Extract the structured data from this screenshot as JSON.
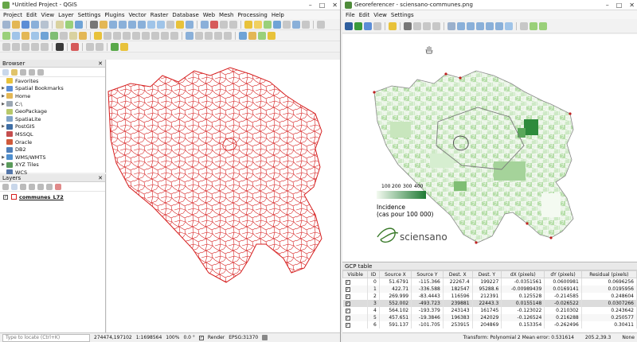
{
  "qgis": {
    "title": "*Untitled Project - QGIS",
    "menu": [
      "Project",
      "Edit",
      "View",
      "Layer",
      "Settings",
      "Plugins",
      "Vector",
      "Raster",
      "Database",
      "Web",
      "Mesh",
      "Processing",
      "Help"
    ],
    "browser": {
      "title": "Browser",
      "items": [
        {
          "label": "Favorites",
          "icon": "star-icon",
          "expand": false
        },
        {
          "label": "Spatial Bookmarks",
          "icon": "bookmark-icon",
          "expand": true
        },
        {
          "label": "Home",
          "icon": "folder-icon",
          "expand": true
        },
        {
          "label": "C:\\",
          "icon": "drive-icon",
          "expand": true
        },
        {
          "label": "GeoPackage",
          "icon": "geopackage-icon",
          "expand": false
        },
        {
          "label": "SpatiaLite",
          "icon": "spatialite-icon",
          "expand": false
        },
        {
          "label": "PostGIS",
          "icon": "postgis-icon",
          "expand": true
        },
        {
          "label": "MSSQL",
          "icon": "mssql-icon",
          "expand": false
        },
        {
          "label": "Oracle",
          "icon": "oracle-icon",
          "expand": false
        },
        {
          "label": "DB2",
          "icon": "db2-icon",
          "expand": false
        },
        {
          "label": "WMS/WMTS",
          "icon": "wms-icon",
          "expand": true
        },
        {
          "label": "XYZ Tiles",
          "icon": "xyz-tiles-icon",
          "expand": true
        },
        {
          "label": "WCS",
          "icon": "wcs-icon",
          "expand": false
        }
      ]
    },
    "layers": {
      "title": "Layers",
      "layer": "communes_L72"
    },
    "status": {
      "locate_placeholder": "Type to locate (Ctrl+K)",
      "coord": "274474,197102",
      "scale": "1:1698564",
      "magnifier": "100%",
      "rotation": "0.0 °",
      "render": "Render",
      "crs": "EPSG:31370"
    }
  },
  "georef": {
    "title": "Georeferencer - sciensano-communes.png",
    "menu": [
      "File",
      "Edit",
      "View",
      "Settings"
    ],
    "legend": {
      "ticks": [
        "100",
        "200",
        "300",
        "400"
      ],
      "title": "Incidence",
      "subtitle": "(cas pour 100 000)"
    },
    "logo": "sciensano",
    "gcp": {
      "title": "GCP table",
      "columns": [
        "Visible",
        "ID",
        "Source X",
        "Source Y",
        "Dest. X",
        "Dest. Y",
        "dX (pixels)",
        "dY (pixels)",
        "Residual (pixels)"
      ],
      "rows": [
        [
          "0",
          "51.6791",
          "-115.366",
          "22267.4",
          "199227",
          "-0.0351561",
          "0.0600981",
          "0.0696256"
        ],
        [
          "1",
          "422.71",
          "-336.588",
          "182547",
          "95288.6",
          "-0.00989439",
          "0.0169141",
          "0.0195956"
        ],
        [
          "2",
          "269.999",
          "-83.4443",
          "116596",
          "212391",
          "0.125528",
          "-0.214585",
          "0.248604"
        ],
        [
          "3",
          "552.002",
          "-493.723",
          "239881",
          "22443.3",
          "0.0155148",
          "-0.026522",
          "0.0307266"
        ],
        [
          "4",
          "564.102",
          "-193.379",
          "243143",
          "161745",
          "-0.123022",
          "0.210302",
          "0.243642"
        ],
        [
          "5",
          "457.651",
          "-19.3846",
          "196383",
          "242029",
          "-0.126524",
          "0.216288",
          "0.250577"
        ],
        [
          "6",
          "591.137",
          "-101.705",
          "253915",
          "204869",
          "0.153354",
          "-0.262496",
          "0.30411"
        ]
      ]
    },
    "status": {
      "transform": "Transform: Polynomial 2 Mean error: 0.531614",
      "coords": "205.2,39.3",
      "none": "None"
    }
  },
  "colors": {
    "outline": "#d62020",
    "map_light": "#eaf4e6",
    "map_dark": "#2e8b3c",
    "accent": "#3d7cc9"
  }
}
